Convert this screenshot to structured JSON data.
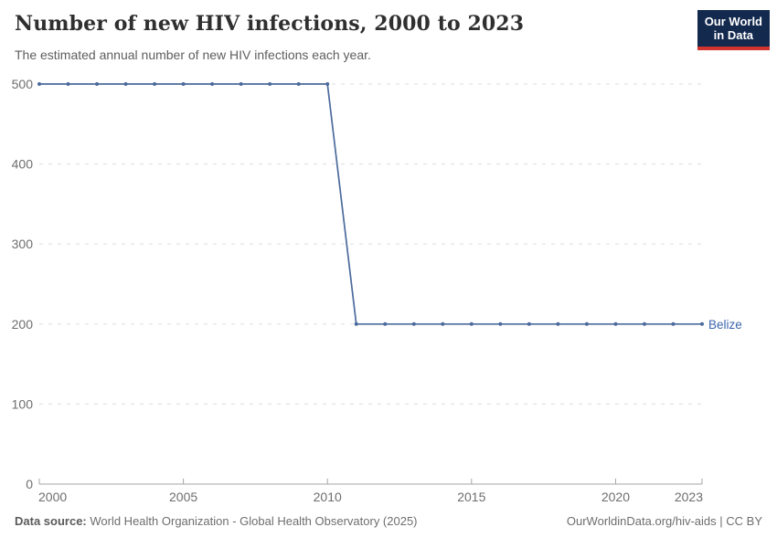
{
  "header": {
    "title": "Number of new HIV infections, 2000 to 2023",
    "subtitle": "The estimated annual number of new HIV infections each year.",
    "logo": {
      "line1": "Our World",
      "line2": "in Data"
    }
  },
  "chart_data": {
    "type": "line",
    "title": "Number of new HIV infections, 2000 to 2023",
    "x": [
      2000,
      2001,
      2002,
      2003,
      2004,
      2005,
      2006,
      2007,
      2008,
      2009,
      2010,
      2011,
      2012,
      2013,
      2014,
      2015,
      2016,
      2017,
      2018,
      2019,
      2020,
      2021,
      2022,
      2023
    ],
    "series": [
      {
        "name": "Belize",
        "color": "#4c6a9c",
        "label_color": "#3d66ac",
        "values": [
          500,
          500,
          500,
          500,
          500,
          500,
          500,
          500,
          500,
          500,
          500,
          200,
          200,
          200,
          200,
          200,
          200,
          200,
          200,
          200,
          200,
          200,
          200,
          200
        ]
      }
    ],
    "xlim": [
      2000,
      2023
    ],
    "ylim": [
      0,
      500
    ],
    "x_ticks": [
      2000,
      2005,
      2010,
      2015,
      2020,
      2023
    ],
    "y_ticks": [
      0,
      100,
      200,
      300,
      400,
      500
    ],
    "grid": "horizontal-dashed",
    "legend_position": "right-of-line"
  },
  "colors": {
    "gridline": "#e3e3e3",
    "axis_line": "#a5a5a5",
    "tick_text": "#6e6e6e",
    "logo_bg": "#13294e",
    "logo_red": "#d0342c"
  },
  "footer": {
    "datasource_label": "Data source:",
    "datasource_value": " World Health Organization - Global Health Observatory (2025)",
    "credit": "OurWorldinData.org/hiv-aids | CC BY"
  }
}
